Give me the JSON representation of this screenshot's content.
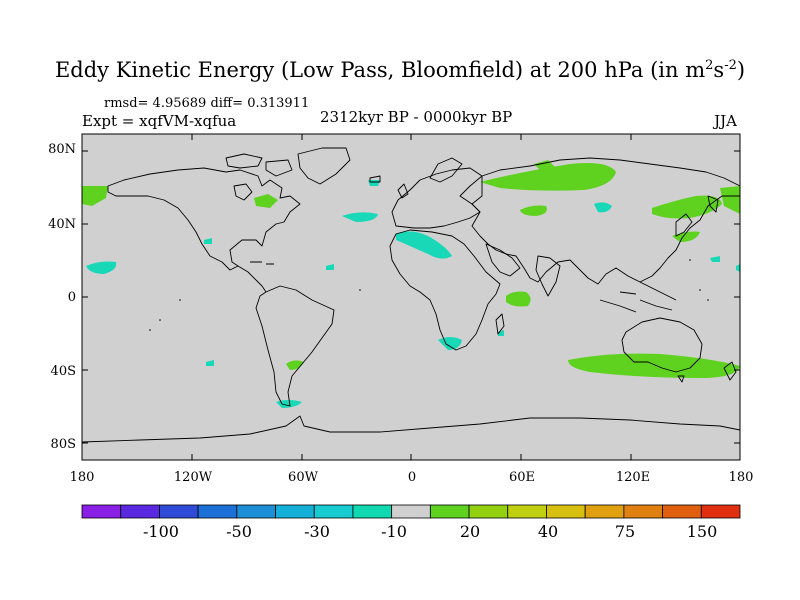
{
  "title": {
    "main": "Eddy Kinetic Energy (Low Pass, Bloomfield) at 200 hPa (in m",
    "sup1": "2",
    "mid": "s",
    "sup2": "-2",
    "close": ")"
  },
  "stats": "rmsd= 4.95689 diff= 0.313911",
  "expt": "Expt = xqfVM-xqfua",
  "period": "2312kyr BP - 0000kyr BP",
  "season": "JJA",
  "map": {
    "lat_ticks": [
      "80N",
      "40N",
      "0",
      "40S",
      "80S"
    ],
    "lon_ticks": [
      "180",
      "120W",
      "60W",
      "0",
      "60E",
      "120E",
      "180"
    ],
    "land_color": "#d0d0d0",
    "coast_color": "#000000"
  },
  "colorbar": {
    "colors": [
      "#8a1fe6",
      "#5a28e0",
      "#2e4ad6",
      "#1d70d8",
      "#1c8fd6",
      "#15b0d8",
      "#18cbd0",
      "#10d8b0",
      "#d0d0d0",
      "#5ed21f",
      "#92d010",
      "#c0d010",
      "#d8c010",
      "#e0a010",
      "#e08010",
      "#e06010",
      "#e03010"
    ],
    "labels": [
      "-100",
      "-50",
      "-30",
      "-10",
      "20",
      "40",
      "75",
      "150"
    ]
  },
  "anomaly_regions": [
    {
      "name": "North Atlantic patch",
      "value": -15,
      "color": "#18d8b8"
    },
    {
      "name": "North Africa patch",
      "value": -15,
      "color": "#18d8b8"
    },
    {
      "name": "Northeast Pacific patch",
      "value": -15,
      "color": "#18d8b8"
    },
    {
      "name": "South Atlantic patch",
      "value": -15,
      "color": "#18d8b8"
    },
    {
      "name": "Southern South America patch",
      "value": -15,
      "color": "#18d8b8"
    },
    {
      "name": "Barents/Siberia patch",
      "value": 15,
      "color": "#5ed21f"
    },
    {
      "name": "Arabian Sea patch",
      "value": 15,
      "color": "#5ed21f"
    },
    {
      "name": "Southern Indian Ocean / Australia band",
      "value": 15,
      "color": "#5ed21f"
    },
    {
      "name": "North Pacific patch",
      "value": 15,
      "color": "#5ed21f"
    },
    {
      "name": "Alaska/Bering patch",
      "value": 15,
      "color": "#5ed21f"
    }
  ]
}
